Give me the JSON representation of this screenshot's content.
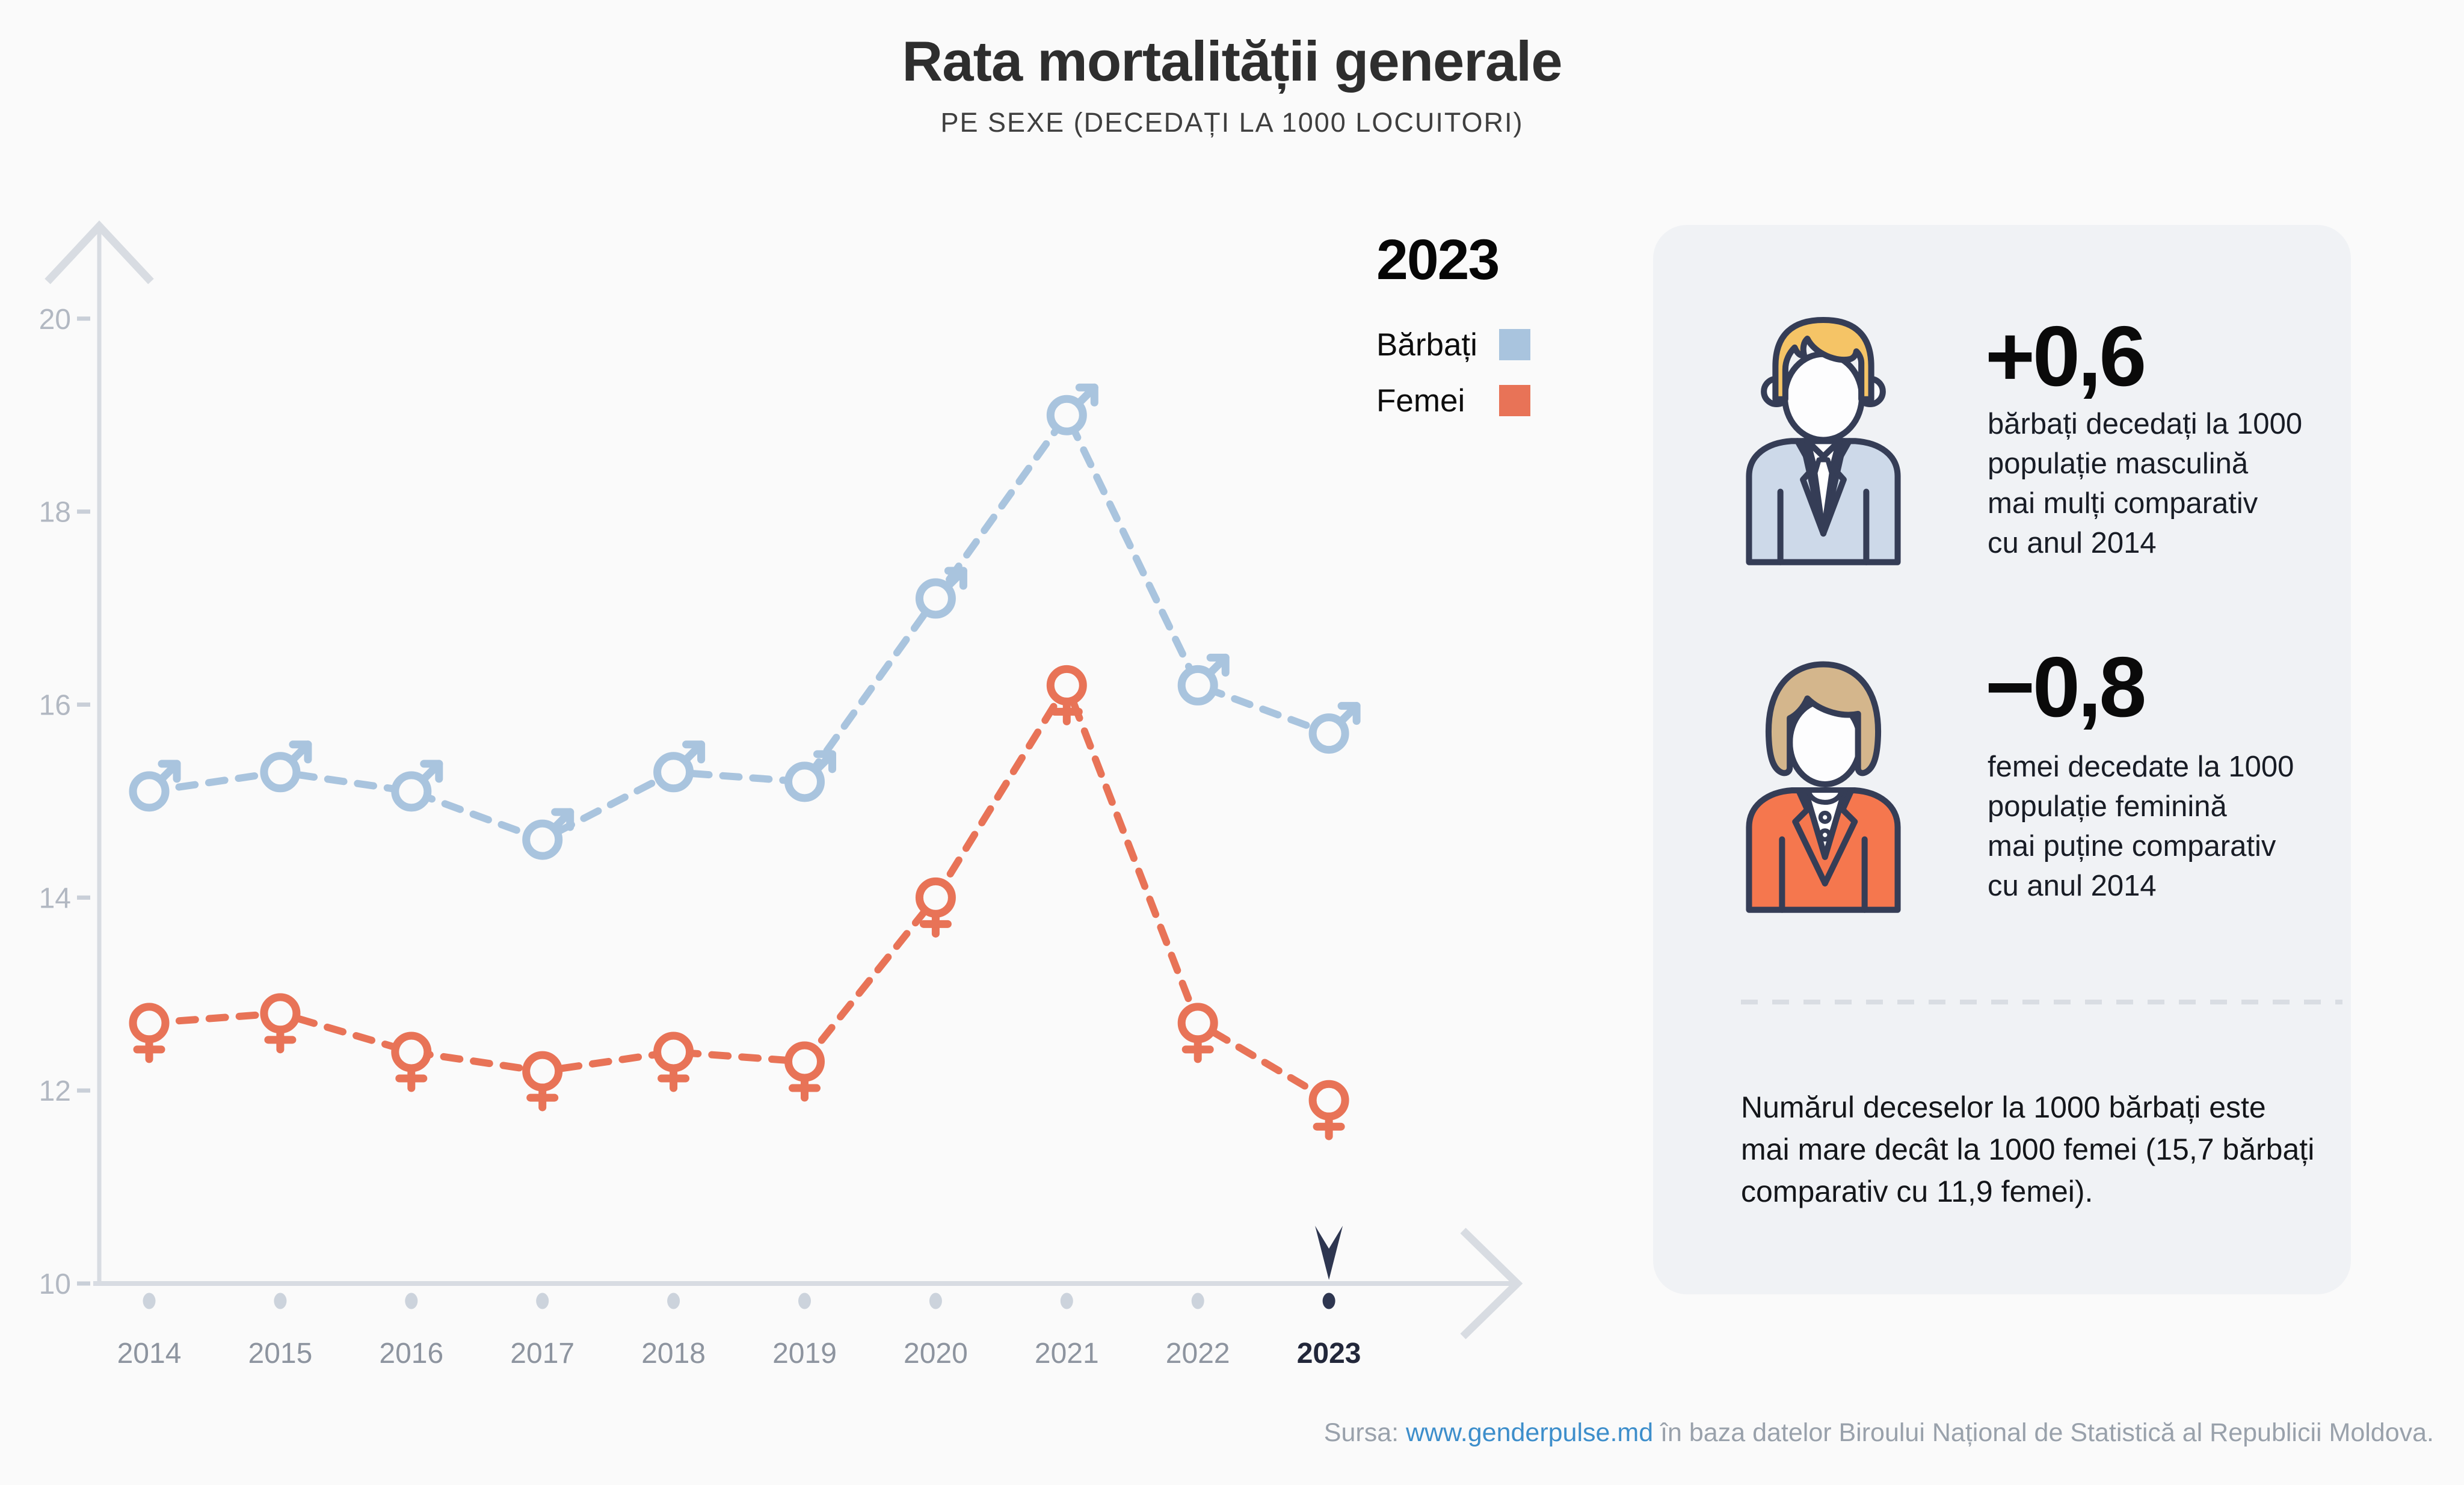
{
  "title": "Rata mortalității generale",
  "subtitle": "PE SEXE (DECEDAȚI LA 1000 LOCUITORI)",
  "legend": {
    "year": "2023",
    "items": [
      {
        "label": "Bărbați",
        "color": "#a9c4de"
      },
      {
        "label": "Femei",
        "color": "#e87357"
      }
    ]
  },
  "chart_data": {
    "type": "line",
    "title": "Rata mortalității generale",
    "subtitle": "PE SEXE (DECEDAȚI LA 1000 LOCUITORI)",
    "categories": [
      2014,
      2015,
      2016,
      2017,
      2018,
      2019,
      2020,
      2021,
      2022,
      2023
    ],
    "series": [
      {
        "name": "Bărbați",
        "marker": "male",
        "color": "#a9c4de",
        "values": [
          15.1,
          15.3,
          15.1,
          14.6,
          15.3,
          15.2,
          17.1,
          19.0,
          16.2,
          15.7
        ]
      },
      {
        "name": "Femei",
        "marker": "female",
        "color": "#e87357",
        "values": [
          12.7,
          12.8,
          12.4,
          12.2,
          12.4,
          12.3,
          14.0,
          16.2,
          12.7,
          11.9
        ]
      }
    ],
    "xlabel": "",
    "ylabel": "decedați la 1000 locuitori",
    "ylim": [
      10,
      20
    ],
    "yticks": [
      10,
      12,
      14,
      16,
      18,
      20
    ],
    "grid": false,
    "line_style": "dashed",
    "legend_position": "top-right",
    "selected_year": 2023
  },
  "panel": {
    "male_stat": {
      "icon": "man-avatar-icon",
      "value": "+0,6",
      "lines": [
        "bărbați decedați la 1000",
        "populație masculină",
        "mai mulți comparativ",
        "cu anul 2014"
      ]
    },
    "female_stat": {
      "icon": "woman-avatar-icon",
      "value": "−0,8",
      "lines": [
        "femei decedate la 1000",
        "populație feminină",
        "mai puține comparativ",
        "cu anul 2014"
      ]
    },
    "note_lines": [
      "Numărul deceselor la 1000 bărbați este",
      "mai mare decât la 1000 femei (15,7 bărbați",
      "comparativ cu 11,9 femei)."
    ]
  },
  "source": {
    "prefix": "Sursa: ",
    "link": "www.genderpulse.md",
    "suffix": " în baza datelor Biroului Național de Statistică al Republicii Moldova."
  },
  "colors": {
    "male": "#a9c4de",
    "female": "#e87357",
    "axis": "#d8dce2",
    "tick": "#c9cfd8",
    "dot": "#ccd3dc",
    "selected": "#2e3650",
    "page_bg": "#fafafa",
    "panel_bg": "#f0f2f5",
    "link": "#3d8ecb"
  }
}
